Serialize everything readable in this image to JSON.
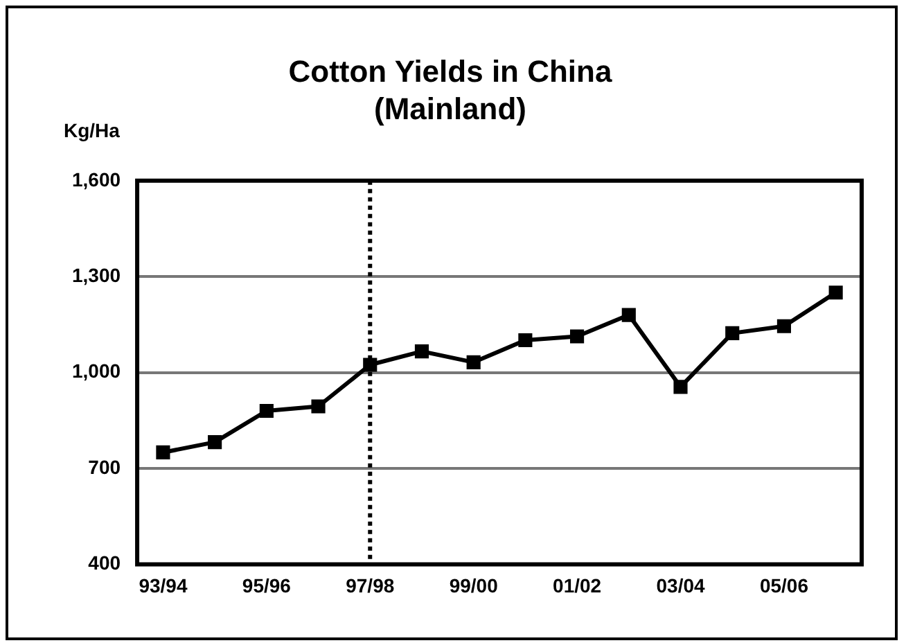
{
  "chart_data": {
    "type": "line",
    "title": "Cotton Yields in China (Mainland)",
    "ylabel": "Kg/Ha",
    "categories": [
      "93/94",
      null,
      "95/96",
      null,
      "97/98",
      null,
      "99/00",
      null,
      "01/02",
      null,
      "03/04",
      null,
      "05/06",
      null
    ],
    "series": [
      {
        "color": "#000000",
        "values": [
          750,
          782,
          880,
          894,
          1024,
          1066,
          1032,
          1101,
          1113,
          1180,
          955,
          1123,
          1145,
          1250
        ]
      }
    ],
    "ylim": [
      400,
      1600
    ],
    "yticks": [
      {
        "value": 400,
        "label": "400"
      },
      {
        "value": 700,
        "label": "700"
      },
      {
        "value": 1000,
        "label": "1,000"
      },
      {
        "value": 1300,
        "label": "1,300"
      },
      {
        "value": 1600,
        "label": "1,600"
      }
    ],
    "grid": "y",
    "marker": "square",
    "line_style": "solid",
    "legend": false,
    "ref_lines": [
      {
        "axis": "x",
        "value": "97/98",
        "line_style": "dotted",
        "color": "#000000"
      }
    ]
  }
}
